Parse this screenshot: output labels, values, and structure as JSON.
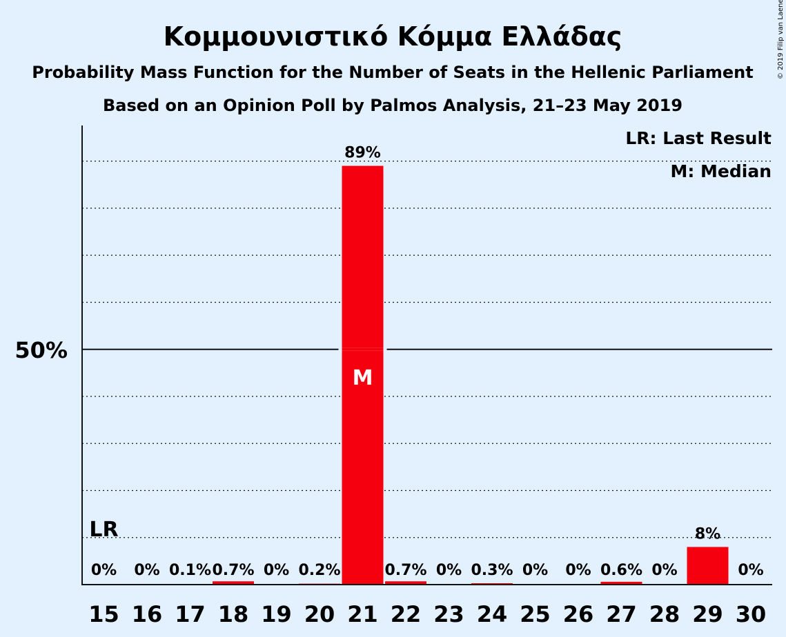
{
  "title": "Κομμουνιστικό Κόμμα Ελλάδας",
  "subtitle1": "Probability Mass Function for the Number of Seats in the Hellenic Parliament",
  "subtitle2": "Based on an Opinion Poll by Palmos Analysis, 21–23 May 2019",
  "copyright": "© 2019 Filip van Laenen",
  "legend": {
    "lr": "LR: Last Result",
    "median": "M: Median"
  },
  "colors": {
    "background": "#e3f0fd",
    "bar": "#f5000f",
    "text": "#111111"
  },
  "chart_data": {
    "type": "bar",
    "categories": [
      "15",
      "16",
      "17",
      "18",
      "19",
      "20",
      "21",
      "22",
      "23",
      "24",
      "25",
      "26",
      "27",
      "28",
      "29",
      "30"
    ],
    "values": [
      0,
      0,
      0.1,
      0.7,
      0,
      0.2,
      89,
      0.7,
      0,
      0.3,
      0,
      0,
      0.6,
      0,
      8,
      0
    ],
    "data_labels": [
      "0%",
      "0%",
      "0.1%",
      "0.7%",
      "0%",
      "0.2%",
      "89%",
      "0.7%",
      "0%",
      "0.3%",
      "0%",
      "0%",
      "0.6%",
      "0%",
      "8%",
      "0%"
    ],
    "ylim": [
      0,
      97
    ],
    "y_tick_label": {
      "value": 50,
      "text": "50%"
    },
    "gridlines": [
      10,
      20,
      30,
      40,
      60,
      70,
      80,
      90
    ],
    "last_result": {
      "seats": "15",
      "marker": "LR"
    },
    "median": {
      "seats": "21",
      "marker": "M"
    }
  }
}
